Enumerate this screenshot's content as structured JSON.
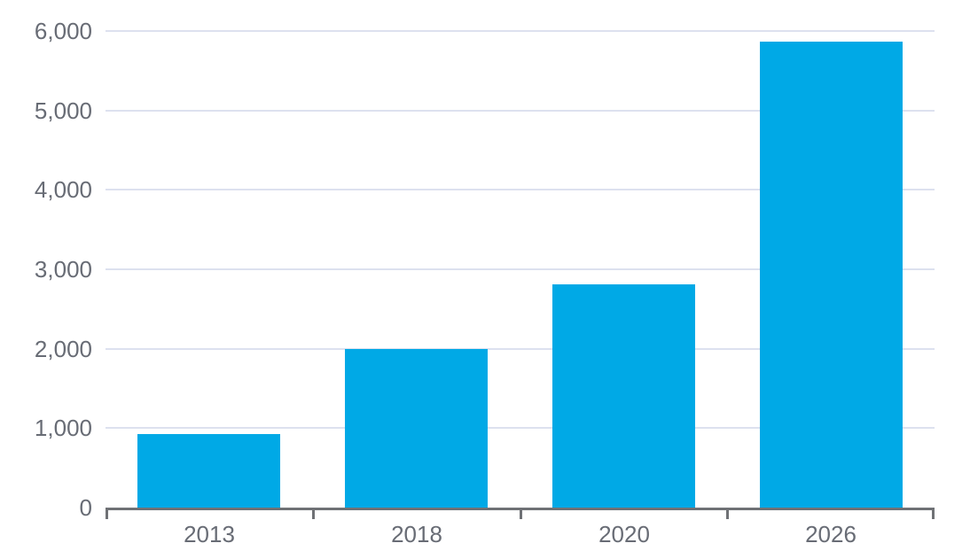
{
  "chart_data": {
    "type": "bar",
    "categories": [
      "2013",
      "2018",
      "2020",
      "2026"
    ],
    "values": [
      930,
      2000,
      2810,
      5870
    ],
    "title": "",
    "xlabel": "",
    "ylabel": "",
    "ylim": [
      0,
      6000
    ],
    "yticks": [
      0,
      1000,
      2000,
      3000,
      4000,
      5000,
      6000
    ],
    "ytick_labels": [
      "0",
      "1,000",
      "2,000",
      "3,000",
      "4,000",
      "5,000",
      "6,000"
    ],
    "grid": true,
    "legend": false,
    "colors": {
      "bar": "#00a9e6",
      "gridline": "#dde1ef",
      "axis": "#6f7175",
      "label": "#686c75"
    }
  }
}
